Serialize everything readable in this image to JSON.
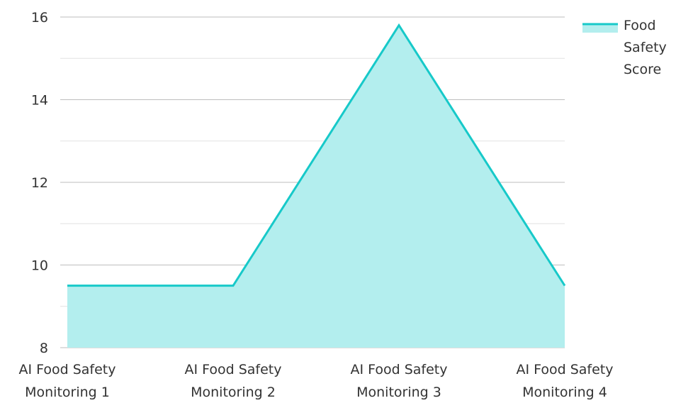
{
  "chart_data": {
    "type": "area",
    "categories": [
      "AI Food Safety Monitoring 1",
      "AI Food Safety Monitoring 2",
      "AI Food Safety Monitoring 3",
      "AI Food Safety Monitoring 4"
    ],
    "series": [
      {
        "name": "Food Safety Score",
        "values": [
          9.5,
          9.5,
          15.8,
          9.5
        ]
      }
    ],
    "ylim": [
      8,
      16
    ],
    "yticks": [
      "8",
      "10",
      "12",
      "14",
      "16"
    ],
    "grid": true,
    "legend_position": "top-right",
    "colors": {
      "line": "#17c9c9",
      "fill": "#b3eeee",
      "grid_major": "#bdbdbd",
      "grid_minor": "#e2e2e2"
    }
  }
}
